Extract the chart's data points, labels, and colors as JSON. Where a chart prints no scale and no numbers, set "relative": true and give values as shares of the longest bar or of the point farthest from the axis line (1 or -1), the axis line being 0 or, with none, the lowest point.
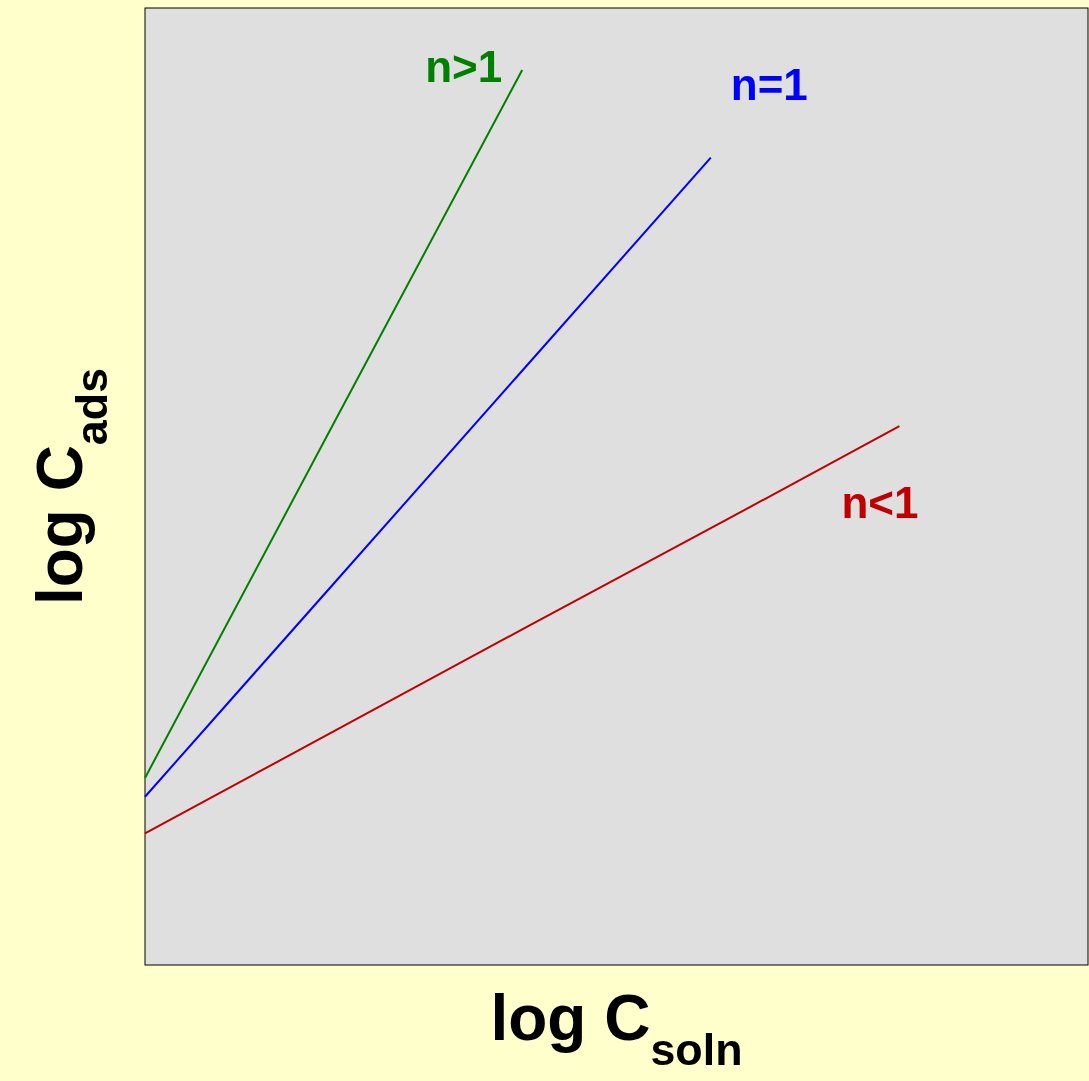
{
  "chart_data": {
    "type": "line",
    "relative": true,
    "xlabel": "log C$_{soln}$",
    "ylabel": "log C$_{ads}$",
    "categories": [
      null,
      null,
      null,
      null,
      null,
      null
    ],
    "tick_labels": false,
    "grid": false,
    "legend": false,
    "marker": "none",
    "line_style": "solid",
    "series": [
      {
        "name": "n>1",
        "color": "#008000",
        "values": [
          0.209,
          0.605,
          1,
          null,
          null,
          null
        ]
      },
      {
        "name": "n=1",
        "color": "#0000ff",
        "values": [
          0.188,
          0.426,
          0.664,
          0.902,
          null,
          null
        ]
      },
      {
        "name": "n<1",
        "color": "#c00000",
        "values": [
          0.147,
          0.261,
          0.375,
          0.488,
          0.602,
          null
        ]
      }
    ]
  }
}
